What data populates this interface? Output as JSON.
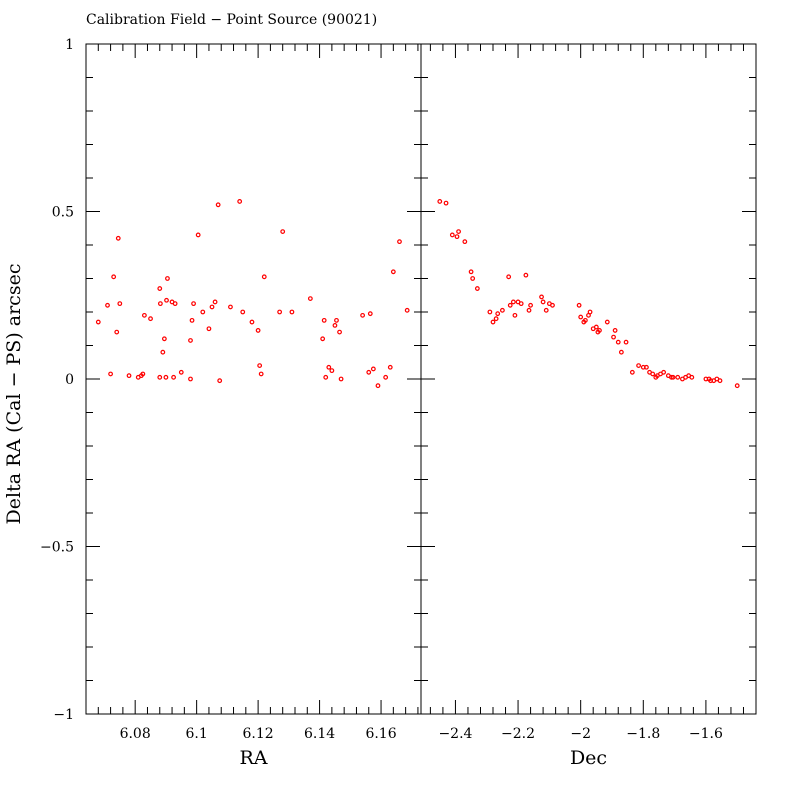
{
  "chart_data": {
    "type": "scatter",
    "title": "Calibration Field − Point Source (90021)",
    "ylabel": "Delta RA (Cal − PS) arcsec",
    "ylim": [
      -1,
      1
    ],
    "y_ticks": [
      -1,
      -0.5,
      0,
      0.5,
      1
    ],
    "y_tick_labels": [
      "−1",
      "−0.5",
      "0",
      "0.5",
      "1"
    ],
    "marker_color": "#ff0000",
    "panels": [
      {
        "xlabel": "RA",
        "xlim": [
          6.064,
          6.173
        ],
        "x_ticks": [
          6.08,
          6.1,
          6.12,
          6.14,
          6.16
        ],
        "x_tick_labels": [
          "6.08",
          "6.1",
          "6.12",
          "6.14",
          "6.16"
        ],
        "x_minor_step": 0.004,
        "points": [
          [
            6.068,
            0.17
          ],
          [
            6.071,
            0.22
          ],
          [
            6.072,
            0.015
          ],
          [
            6.073,
            0.305
          ],
          [
            6.074,
            0.14
          ],
          [
            6.0745,
            0.42
          ],
          [
            6.075,
            0.225
          ],
          [
            6.078,
            0.01
          ],
          [
            6.081,
            0.005
          ],
          [
            6.082,
            0.01
          ],
          [
            6.0825,
            0.015
          ],
          [
            6.083,
            0.19
          ],
          [
            6.085,
            0.18
          ],
          [
            6.088,
            0.27
          ],
          [
            6.0882,
            0.225
          ],
          [
            6.088,
            0.005
          ],
          [
            6.089,
            0.08
          ],
          [
            6.0895,
            0.12
          ],
          [
            6.09,
            0.005
          ],
          [
            6.0902,
            0.235
          ],
          [
            6.0905,
            0.3
          ],
          [
            6.092,
            0.23
          ],
          [
            6.0925,
            0.005
          ],
          [
            6.093,
            0.225
          ],
          [
            6.095,
            0.02
          ],
          [
            6.098,
            0.0
          ],
          [
            6.098,
            0.115
          ],
          [
            6.0985,
            0.175
          ],
          [
            6.099,
            0.225
          ],
          [
            6.1005,
            0.43
          ],
          [
            6.102,
            0.2
          ],
          [
            6.104,
            0.15
          ],
          [
            6.105,
            0.215
          ],
          [
            6.106,
            0.23
          ],
          [
            6.107,
            0.52
          ],
          [
            6.1075,
            -0.005
          ],
          [
            6.111,
            0.215
          ],
          [
            6.114,
            0.53
          ],
          [
            6.115,
            0.2
          ],
          [
            6.118,
            0.17
          ],
          [
            6.12,
            0.145
          ],
          [
            6.1205,
            0.04
          ],
          [
            6.121,
            0.015
          ],
          [
            6.122,
            0.305
          ],
          [
            6.127,
            0.2
          ],
          [
            6.128,
            0.44
          ],
          [
            6.131,
            0.2
          ],
          [
            6.137,
            0.24
          ],
          [
            6.141,
            0.12
          ],
          [
            6.1415,
            0.175
          ],
          [
            6.142,
            0.005
          ],
          [
            6.143,
            0.035
          ],
          [
            6.144,
            0.025
          ],
          [
            6.145,
            0.16
          ],
          [
            6.1455,
            0.175
          ],
          [
            6.1465,
            0.14
          ],
          [
            6.147,
            0.0
          ],
          [
            6.154,
            0.19
          ],
          [
            6.156,
            0.02
          ],
          [
            6.1565,
            0.195
          ],
          [
            6.1575,
            0.03
          ],
          [
            6.159,
            -0.02
          ],
          [
            6.1615,
            0.005
          ],
          [
            6.163,
            0.035
          ],
          [
            6.164,
            0.32
          ],
          [
            6.166,
            0.41
          ],
          [
            6.1685,
            0.205
          ]
        ]
      },
      {
        "xlabel": "Dec",
        "xlim": [
          -2.51,
          -1.44
        ],
        "x_ticks": [
          -2.4,
          -2.2,
          -2,
          -1.8,
          -1.6
        ],
        "x_tick_labels": [
          "−2.4",
          "−2.2",
          "−2",
          "−1.8",
          "−1.6"
        ],
        "x_minor_step": 0.04,
        "points": [
          [
            -2.45,
            0.53
          ],
          [
            -2.43,
            0.525
          ],
          [
            -2.41,
            0.43
          ],
          [
            -2.395,
            0.425
          ],
          [
            -2.39,
            0.44
          ],
          [
            -2.37,
            0.41
          ],
          [
            -2.35,
            0.32
          ],
          [
            -2.345,
            0.3
          ],
          [
            -2.33,
            0.27
          ],
          [
            -2.29,
            0.2
          ],
          [
            -2.28,
            0.17
          ],
          [
            -2.27,
            0.18
          ],
          [
            -2.265,
            0.195
          ],
          [
            -2.25,
            0.205
          ],
          [
            -2.23,
            0.305
          ],
          [
            -2.225,
            0.22
          ],
          [
            -2.215,
            0.23
          ],
          [
            -2.21,
            0.19
          ],
          [
            -2.2,
            0.23
          ],
          [
            -2.19,
            0.225
          ],
          [
            -2.175,
            0.31
          ],
          [
            -2.165,
            0.205
          ],
          [
            -2.16,
            0.22
          ],
          [
            -2.125,
            0.245
          ],
          [
            -2.12,
            0.23
          ],
          [
            -2.11,
            0.205
          ],
          [
            -2.1,
            0.225
          ],
          [
            -2.09,
            0.22
          ],
          [
            -2.005,
            0.22
          ],
          [
            -2.0,
            0.185
          ],
          [
            -1.99,
            0.17
          ],
          [
            -1.985,
            0.175
          ],
          [
            -1.975,
            0.19
          ],
          [
            -1.97,
            0.2
          ],
          [
            -1.96,
            0.15
          ],
          [
            -1.95,
            0.155
          ],
          [
            -1.945,
            0.14
          ],
          [
            -1.94,
            0.145
          ],
          [
            -1.915,
            0.17
          ],
          [
            -1.895,
            0.125
          ],
          [
            -1.89,
            0.145
          ],
          [
            -1.88,
            0.11
          ],
          [
            -1.87,
            0.08
          ],
          [
            -1.855,
            0.11
          ],
          [
            -1.835,
            0.02
          ],
          [
            -1.815,
            0.04
          ],
          [
            -1.8,
            0.035
          ],
          [
            -1.79,
            0.035
          ],
          [
            -1.78,
            0.02
          ],
          [
            -1.77,
            0.015
          ],
          [
            -1.76,
            0.005
          ],
          [
            -1.755,
            0.01
          ],
          [
            -1.745,
            0.015
          ],
          [
            -1.735,
            0.02
          ],
          [
            -1.72,
            0.01
          ],
          [
            -1.71,
            0.005
          ],
          [
            -1.705,
            0.005
          ],
          [
            -1.69,
            0.005
          ],
          [
            -1.675,
            0.0
          ],
          [
            -1.665,
            0.005
          ],
          [
            -1.655,
            0.01
          ],
          [
            -1.645,
            0.005
          ],
          [
            -1.6,
            0.0
          ],
          [
            -1.59,
            0.0
          ],
          [
            -1.585,
            -0.005
          ],
          [
            -1.575,
            -0.005
          ],
          [
            -1.565,
            0.0
          ],
          [
            -1.555,
            -0.005
          ],
          [
            -1.5,
            -0.02
          ]
        ]
      }
    ]
  }
}
